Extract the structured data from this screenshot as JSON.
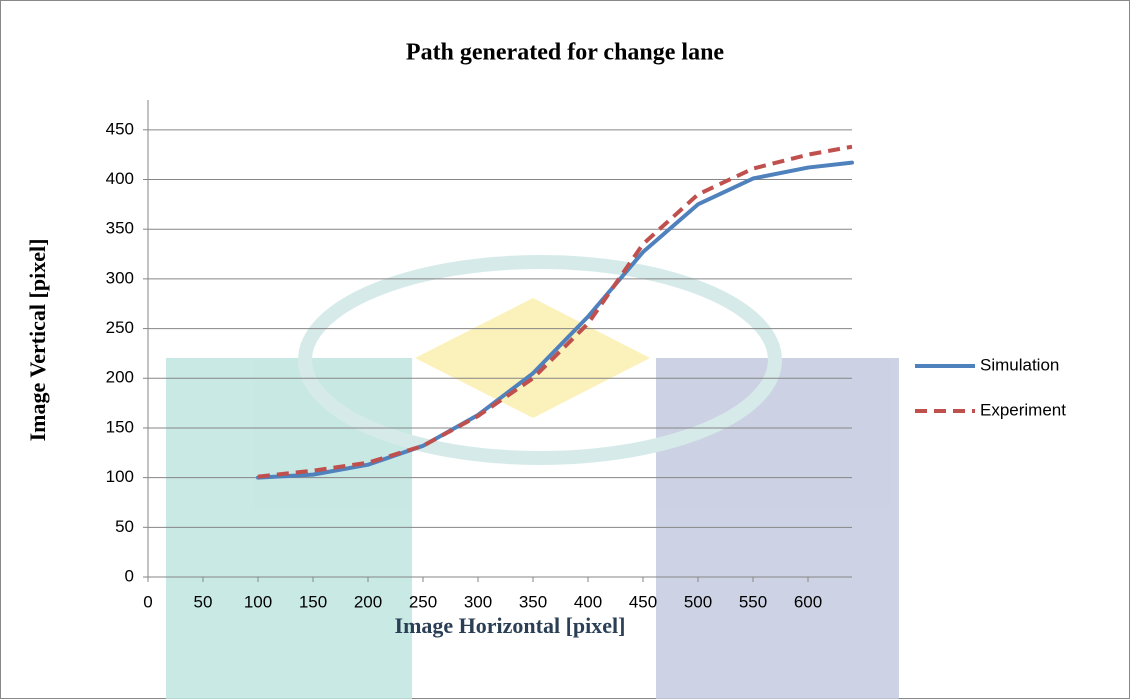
{
  "chart_data": {
    "type": "line",
    "title": "Path generated for change lane",
    "x_label": "Image Horizontal [pixel]",
    "y_label": "Image Vertical [pixel]",
    "x": [
      100,
      150,
      200,
      250,
      300,
      350,
      400,
      450,
      500,
      550,
      600,
      640
    ],
    "series": [
      {
        "name": "Simulation",
        "color": "#4f81bd",
        "line_style": "solid",
        "values": [
          100,
          103,
          113,
          132,
          163,
          205,
          262,
          327,
          375,
          401,
          412,
          417
        ]
      },
      {
        "name": "Experiment",
        "color": "#c0504d",
        "line_style": "dashed",
        "values": [
          101,
          107,
          115,
          132,
          162,
          200,
          255,
          335,
          385,
          411,
          425,
          433
        ]
      }
    ],
    "xlim": [
      0,
      640
    ],
    "xticks": [
      0,
      50,
      100,
      150,
      200,
      250,
      300,
      350,
      400,
      450,
      500,
      550,
      600
    ],
    "ylim": [
      0,
      480
    ],
    "yticks": [
      0,
      50,
      100,
      150,
      200,
      250,
      300,
      350,
      400,
      450
    ],
    "grid": true,
    "legend": "right"
  }
}
